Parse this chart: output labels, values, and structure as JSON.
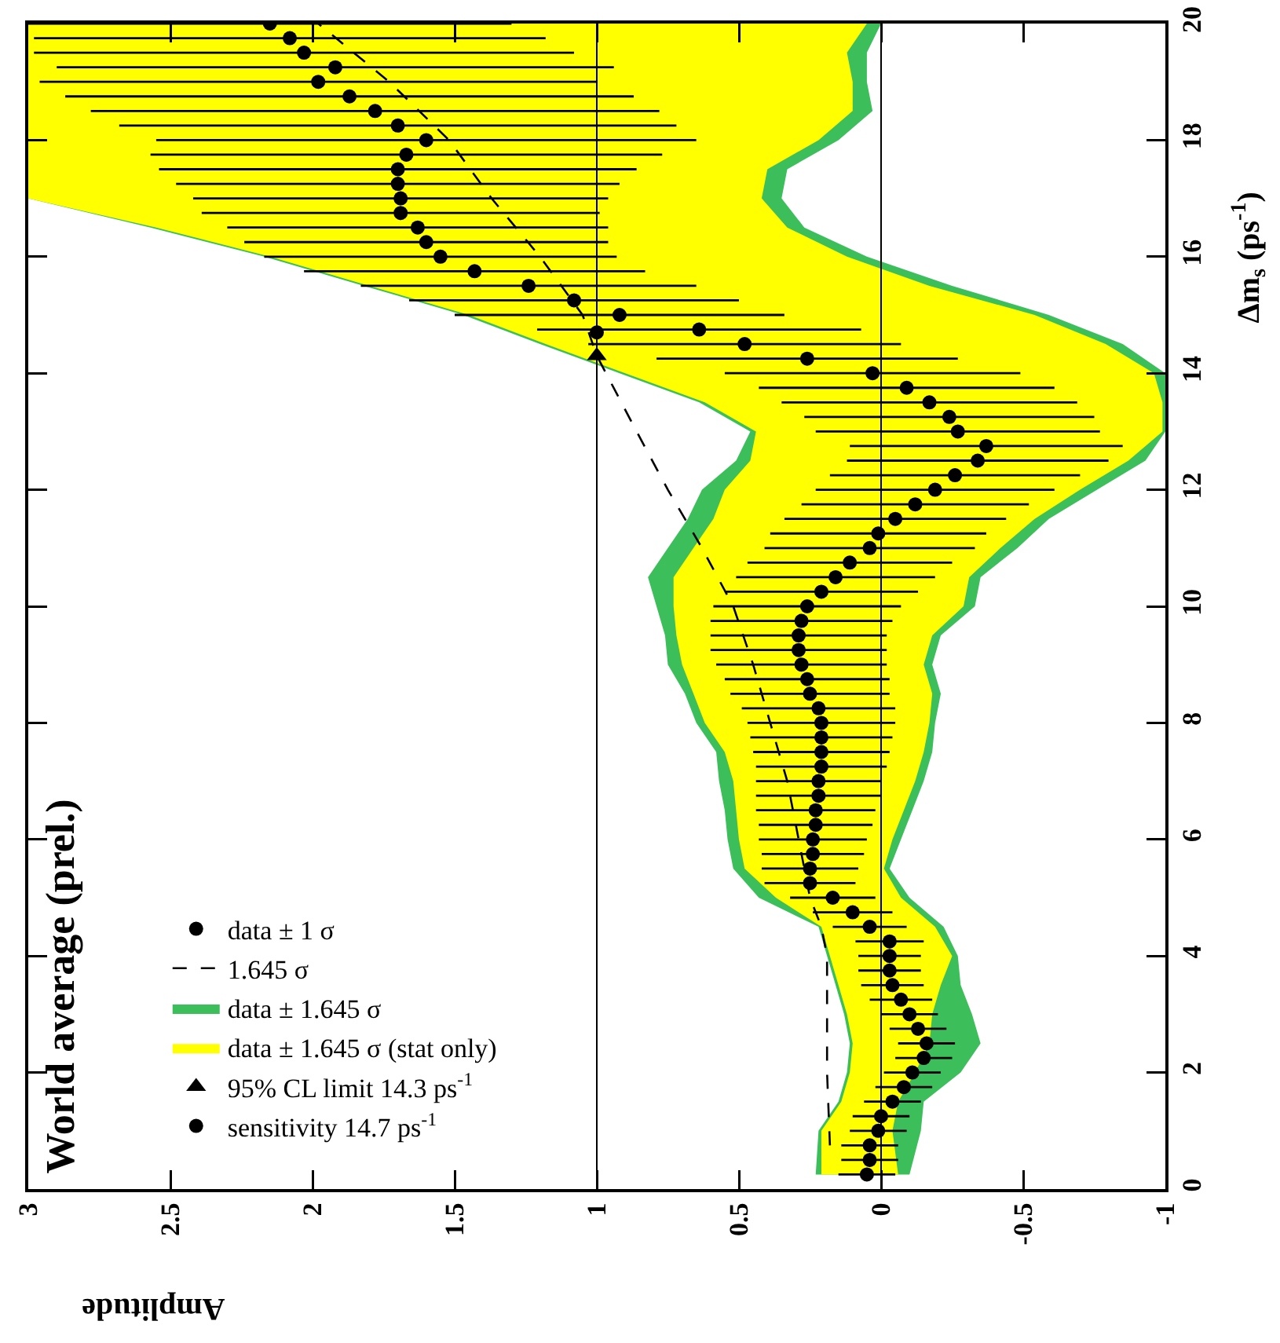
{
  "chart_data": {
    "type": "scatter",
    "orientation": "horizontal",
    "title": "World average (prel.)",
    "xlabel": "Amplitude",
    "ylabel": "Δm$_{s}$ (ps$^{-1}$)",
    "xlim": [
      3,
      -1
    ],
    "xticks": [
      3,
      2.5,
      2,
      1.5,
      1,
      0.5,
      0,
      -0.5,
      -1
    ],
    "ylim": [
      0,
      20
    ],
    "yticks": [
      0,
      2,
      4,
      6,
      8,
      10,
      12,
      14,
      16,
      18,
      20
    ],
    "grid": false,
    "legend": "bottom left",
    "marker": "circle",
    "ref_lines": [
      {
        "axis": "x",
        "value": 0,
        "color": "#000000"
      },
      {
        "axis": "x",
        "value": 1,
        "color": "#000000"
      }
    ],
    "series": [
      {
        "name": "data ± 1 σ",
        "color": "#000000",
        "x": [
          0.25,
          0.5,
          0.75,
          1,
          1.25,
          1.5,
          1.75,
          2,
          2.25,
          2.5,
          2.75,
          3,
          3.25,
          3.5,
          3.75,
          4,
          4.25,
          4.5,
          4.75,
          5,
          5.25,
          5.5,
          5.75,
          6,
          6.25,
          6.5,
          6.75,
          7,
          7.25,
          7.5,
          7.75,
          8,
          8.25,
          8.5,
          8.75,
          9,
          9.25,
          9.5,
          9.75,
          10,
          10.25,
          10.5,
          10.75,
          11,
          11.25,
          11.5,
          11.75,
          12,
          12.25,
          12.5,
          12.75,
          13,
          13.25,
          13.5,
          13.75,
          14,
          14.25,
          14.5,
          14.75,
          15,
          15.25,
          15.5,
          15.75,
          16,
          16.25,
          16.5,
          16.75,
          17,
          17.25,
          17.5,
          17.75,
          18,
          18.25,
          18.5,
          18.75,
          19,
          19.25,
          19.5,
          19.75,
          20
        ],
        "values": [
          0.05,
          0.04,
          0.04,
          0.01,
          0.0,
          -0.04,
          -0.08,
          -0.11,
          -0.15,
          -0.16,
          -0.13,
          -0.1,
          -0.07,
          -0.04,
          -0.03,
          -0.03,
          -0.03,
          0.04,
          0.1,
          0.17,
          0.25,
          0.25,
          0.24,
          0.24,
          0.23,
          0.23,
          0.22,
          0.22,
          0.21,
          0.21,
          0.21,
          0.21,
          0.22,
          0.25,
          0.26,
          0.28,
          0.29,
          0.29,
          0.28,
          0.26,
          0.21,
          0.16,
          0.11,
          0.04,
          0.01,
          -0.05,
          -0.12,
          -0.19,
          -0.26,
          -0.34,
          -0.37,
          -0.27,
          -0.24,
          -0.17,
          -0.09,
          0.03,
          0.26,
          0.48,
          0.64,
          0.92,
          1.08,
          1.24,
          1.43,
          1.55,
          1.6,
          1.63,
          1.69,
          1.69,
          1.7,
          1.7,
          1.67,
          1.6,
          1.7,
          1.78,
          1.87,
          1.98,
          1.92,
          2.03,
          2.08,
          2.15
        ],
        "errors": [
          0.1,
          0.1,
          0.1,
          0.1,
          0.1,
          0.1,
          0.1,
          0.1,
          0.1,
          0.1,
          0.1,
          0.1,
          0.11,
          0.11,
          0.11,
          0.11,
          0.12,
          0.13,
          0.14,
          0.15,
          0.16,
          0.17,
          0.18,
          0.19,
          0.2,
          0.21,
          0.22,
          0.22,
          0.23,
          0.24,
          0.25,
          0.26,
          0.27,
          0.28,
          0.29,
          0.3,
          0.31,
          0.31,
          0.32,
          0.33,
          0.34,
          0.35,
          0.36,
          0.37,
          0.38,
          0.39,
          0.4,
          0.42,
          0.44,
          0.46,
          0.48,
          0.5,
          0.51,
          0.52,
          0.52,
          0.52,
          0.53,
          0.55,
          0.57,
          0.58,
          0.58,
          0.59,
          0.6,
          0.62,
          0.64,
          0.67,
          0.7,
          0.73,
          0.78,
          0.84,
          0.9,
          0.95,
          0.98,
          1.0,
          1.0,
          0.98,
          0.98,
          0.95,
          0.9,
          0.85
        ]
      },
      {
        "name": "1.645 σ",
        "type": "line",
        "color": "#000000",
        "marker": "none",
        "line_style": "dashed",
        "x": [
          0.75,
          2,
          4,
          4.5,
          5,
          6,
          7,
          8,
          9,
          10,
          11,
          12,
          13,
          14.3,
          15,
          16,
          17,
          18,
          19,
          20
        ],
        "values": [
          0.18,
          0.19,
          0.19,
          0.21,
          0.25,
          0.29,
          0.33,
          0.39,
          0.45,
          0.52,
          0.63,
          0.75,
          0.86,
          1.0,
          1.05,
          1.2,
          1.37,
          1.52,
          1.73,
          1.98
        ]
      },
      {
        "name": "data ± 1.645 σ",
        "type": "area",
        "color": "#3cbf5a",
        "x": [
          0.25,
          1,
          1.5,
          2,
          2.5,
          3,
          3.5,
          4,
          4.5,
          5,
          5.5,
          6,
          6.5,
          7,
          7.5,
          8,
          8.5,
          9,
          9.5,
          10,
          10.5,
          11,
          11.5,
          12,
          12.5,
          13,
          13.5,
          14,
          14.5,
          15,
          15.5,
          16,
          16.5,
          17,
          17.5,
          18,
          18.5,
          19,
          19.5,
          20
        ],
        "values": [
          null,
          null,
          null,
          null,
          null,
          null,
          null,
          null,
          null,
          null,
          null,
          null,
          null,
          null,
          null,
          null,
          null,
          null,
          null,
          null,
          null,
          null,
          null,
          null,
          null,
          null,
          null,
          null,
          null,
          null,
          null,
          null,
          null,
          null,
          null,
          null,
          null,
          null,
          null,
          null
        ],
        "lower": [
          -0.1,
          -0.14,
          -0.15,
          -0.28,
          -0.35,
          -0.32,
          -0.28,
          -0.27,
          -0.22,
          -0.1,
          -0.03,
          -0.07,
          -0.11,
          -0.15,
          -0.18,
          -0.19,
          -0.21,
          -0.18,
          -0.21,
          -0.33,
          -0.35,
          -0.48,
          -0.59,
          -0.76,
          -0.93,
          -1.0,
          -1.0,
          -1.0,
          -0.85,
          -0.59,
          -0.25,
          0.05,
          0.27,
          0.35,
          0.33,
          0.15,
          0.03,
          0.05,
          0.05,
          0.0
        ],
        "upper": [
          0.23,
          0.22,
          0.15,
          0.12,
          0.11,
          0.13,
          0.16,
          0.19,
          0.22,
          0.43,
          0.52,
          0.54,
          0.55,
          0.57,
          0.58,
          0.65,
          0.69,
          0.75,
          0.76,
          0.79,
          0.82,
          0.75,
          0.68,
          0.63,
          0.51,
          0.46,
          0.64,
          0.92,
          1.2,
          1.47,
          1.82,
          2.17,
          2.57,
          3,
          3,
          3,
          3,
          3,
          3,
          3
        ]
      },
      {
        "name": "data ± 1.645 σ (stat only)",
        "type": "area",
        "color": "#ffff00",
        "x": [
          0.25,
          1,
          1.5,
          2,
          2.5,
          3,
          3.5,
          4,
          4.5,
          5,
          5.5,
          6,
          6.5,
          7,
          7.5,
          8,
          8.5,
          9,
          9.5,
          10,
          10.5,
          11,
          11.5,
          12,
          12.5,
          13,
          13.5,
          14,
          14.5,
          15,
          15.5,
          16,
          16.5,
          17,
          17.5,
          18,
          18.5,
          19,
          19.5,
          20
        ],
        "values": [
          null,
          null,
          null,
          null,
          null,
          null,
          null,
          null,
          null,
          null,
          null,
          null,
          null,
          null,
          null,
          null,
          null,
          null,
          null,
          null,
          null,
          null,
          null,
          null,
          null,
          null,
          null,
          null,
          null,
          null,
          null,
          null,
          null,
          null,
          null,
          null,
          null,
          null,
          null,
          null
        ],
        "lower": [
          -0.06,
          -0.04,
          -0.06,
          -0.12,
          -0.17,
          -0.18,
          -0.21,
          -0.25,
          -0.19,
          -0.07,
          -0.01,
          -0.04,
          -0.08,
          -0.12,
          -0.15,
          -0.17,
          -0.18,
          -0.15,
          -0.18,
          -0.29,
          -0.31,
          -0.42,
          -0.54,
          -0.7,
          -0.87,
          -0.99,
          -0.99,
          -0.96,
          -0.79,
          -0.54,
          -0.17,
          0.12,
          0.33,
          0.42,
          0.4,
          0.22,
          0.1,
          0.1,
          0.12,
          0.05
        ],
        "upper": [
          0.21,
          0.21,
          0.14,
          0.11,
          0.1,
          0.12,
          0.15,
          0.18,
          0.21,
          0.37,
          0.48,
          0.5,
          0.51,
          0.52,
          0.55,
          0.62,
          0.66,
          0.7,
          0.72,
          0.73,
          0.73,
          0.66,
          0.59,
          0.55,
          0.46,
          0.44,
          0.62,
          0.9,
          1.18,
          1.45,
          1.8,
          2.15,
          2.55,
          3,
          3,
          3,
          3,
          3,
          3,
          3
        ]
      },
      {
        "name": "95% CL limit 14.3 ps$^{-1}$",
        "color": "#000000",
        "marker": "triangle",
        "x": [
          14.3
        ],
        "values": [
          1
        ]
      },
      {
        "name": "sensitivity 14.7 ps$^{-1}$",
        "color": "#000000",
        "x": [
          14.7
        ],
        "values": [
          1
        ]
      }
    ]
  }
}
